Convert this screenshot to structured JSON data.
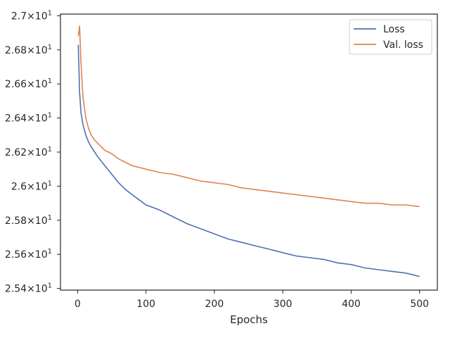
{
  "chart_data": {
    "type": "line",
    "xlabel": "Epochs",
    "ylabel": "",
    "xlim": [
      -25,
      526
    ],
    "ylim": [
      25.39,
      27.01
    ],
    "x_ticks": [
      0,
      100,
      200,
      300,
      400,
      500
    ],
    "x_tick_labels": [
      "0",
      "100",
      "200",
      "300",
      "400",
      "500"
    ],
    "y_ticks": [
      25.4,
      25.6,
      25.8,
      26.0,
      26.2,
      26.4,
      26.6,
      26.8,
      27.0
    ],
    "y_tick_mantissas": [
      "2.54",
      "2.56",
      "2.58",
      "2.6",
      "2.62",
      "2.64",
      "2.66",
      "2.68",
      "2.7"
    ],
    "y_tick_base": "10",
    "y_tick_exponent": "1",
    "grid": false,
    "legend_position": "top-right",
    "series": [
      {
        "name": "Loss",
        "color": "#4c72b0",
        "points": [
          [
            1,
            26.83
          ],
          [
            3,
            26.55
          ],
          [
            5,
            26.43
          ],
          [
            8,
            26.36
          ],
          [
            12,
            26.3
          ],
          [
            16,
            26.26
          ],
          [
            20,
            26.23
          ],
          [
            25,
            26.2
          ],
          [
            30,
            26.17
          ],
          [
            40,
            26.12
          ],
          [
            50,
            26.07
          ],
          [
            60,
            26.02
          ],
          [
            70,
            25.98
          ],
          [
            80,
            25.95
          ],
          [
            90,
            25.92
          ],
          [
            100,
            25.89
          ],
          [
            120,
            25.86
          ],
          [
            140,
            25.82
          ],
          [
            160,
            25.78
          ],
          [
            180,
            25.75
          ],
          [
            200,
            25.72
          ],
          [
            220,
            25.69
          ],
          [
            240,
            25.67
          ],
          [
            260,
            25.65
          ],
          [
            280,
            25.63
          ],
          [
            300,
            25.61
          ],
          [
            320,
            25.59
          ],
          [
            340,
            25.58
          ],
          [
            360,
            25.57
          ],
          [
            380,
            25.55
          ],
          [
            400,
            25.54
          ],
          [
            420,
            25.52
          ],
          [
            440,
            25.51
          ],
          [
            460,
            25.5
          ],
          [
            480,
            25.49
          ],
          [
            500,
            25.47
          ]
        ]
      },
      {
        "name": "Val. loss",
        "color": "#dd8452",
        "points": [
          [
            1,
            26.88
          ],
          [
            3,
            26.94
          ],
          [
            5,
            26.72
          ],
          [
            8,
            26.52
          ],
          [
            12,
            26.4
          ],
          [
            16,
            26.34
          ],
          [
            20,
            26.3
          ],
          [
            25,
            26.27
          ],
          [
            30,
            26.25
          ],
          [
            40,
            26.21
          ],
          [
            50,
            26.19
          ],
          [
            60,
            26.16
          ],
          [
            70,
            26.14
          ],
          [
            80,
            26.12
          ],
          [
            90,
            26.11
          ],
          [
            100,
            26.1
          ],
          [
            120,
            26.08
          ],
          [
            140,
            26.07
          ],
          [
            160,
            26.05
          ],
          [
            180,
            26.03
          ],
          [
            200,
            26.02
          ],
          [
            220,
            26.01
          ],
          [
            240,
            25.99
          ],
          [
            260,
            25.98
          ],
          [
            280,
            25.97
          ],
          [
            300,
            25.96
          ],
          [
            320,
            25.95
          ],
          [
            340,
            25.94
          ],
          [
            360,
            25.93
          ],
          [
            380,
            25.92
          ],
          [
            400,
            25.91
          ],
          [
            420,
            25.9
          ],
          [
            440,
            25.9
          ],
          [
            460,
            25.89
          ],
          [
            480,
            25.89
          ],
          [
            500,
            25.88
          ]
        ]
      }
    ]
  }
}
